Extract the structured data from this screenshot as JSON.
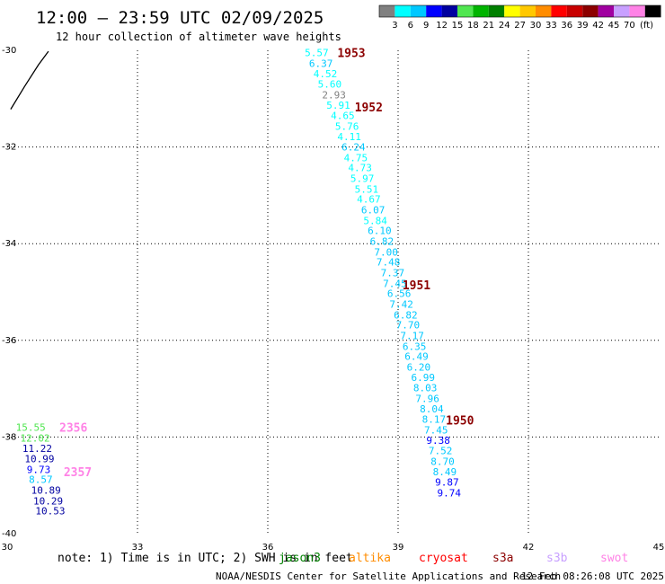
{
  "header": {
    "title": "12:00 – 23:59 UTC 02/09/2025",
    "subtitle": "12 hour collection of altimeter wave heights"
  },
  "colorbar": {
    "unit": "(ft)",
    "colors": [
      "#808080",
      "#00ffff",
      "#00c8ff",
      "#0000ff",
      "#0000a0",
      "#50e650",
      "#00b400",
      "#008000",
      "#ffff00",
      "#ffc800",
      "#ff8c00",
      "#ff0000",
      "#c80000",
      "#8c0000",
      "#a000a0",
      "#c8a0ff",
      "#ff82e6",
      "#000000"
    ],
    "labels": [
      "3",
      "6",
      "9",
      "12",
      "15",
      "18",
      "21",
      "24",
      "27",
      "30",
      "33",
      "36",
      "39",
      "42",
      "45",
      "70"
    ]
  },
  "footer": {
    "note": "note:  1) Time is in UTC; 2) SWH is in feet",
    "satellites": [
      {
        "name": "jason3",
        "color": "#008000"
      },
      {
        "name": "altika",
        "color": "#ff8c00"
      },
      {
        "name": "cryosat",
        "color": "#ff0000"
      },
      {
        "name": "s3a",
        "color": "#8c0000"
      },
      {
        "name": "s3b",
        "color": "#c8a0ff"
      },
      {
        "name": "swot",
        "color": "#ff82e6"
      }
    ],
    "credit": "NOAA/NESDIS Center for Satellite Applications and Research",
    "timestamp": "12 Feb 08:26:08 UTC 2025"
  },
  "chart_data": {
    "type": "map",
    "xlim": [
      30,
      45
    ],
    "ylim": [
      -40,
      -30
    ],
    "x_ticks": [
      30,
      33,
      36,
      39,
      42,
      45
    ],
    "y_ticks": [
      -30,
      -32,
      -34,
      -36,
      -38,
      -40
    ],
    "x_tick_labels": [
      "30",
      "33",
      "36",
      "39",
      "42",
      "45"
    ],
    "y_tick_labels": [
      "-30",
      "-32",
      "-34",
      "-36",
      "-38",
      "-40"
    ],
    "grid": true,
    "coastline": [
      [
        30.08,
        -31.22
      ],
      [
        30.4,
        -30.75
      ],
      [
        30.72,
        -30.3
      ],
      [
        30.95,
        -30.02
      ]
    ],
    "observations": [
      {
        "lon": 36.85,
        "lat": -30.05,
        "swh": "5.57",
        "color": "#00ffff"
      },
      {
        "lon": 36.95,
        "lat": -30.27,
        "swh": "6.37",
        "color": "#00c8ff"
      },
      {
        "lon": 37.05,
        "lat": -30.48,
        "swh": "4.52",
        "color": "#00ffff"
      },
      {
        "lon": 37.15,
        "lat": -30.7,
        "swh": "5.60",
        "color": "#00ffff"
      },
      {
        "lon": 37.25,
        "lat": -30.92,
        "swh": "2.93",
        "color": "#808080"
      },
      {
        "lon": 37.35,
        "lat": -31.13,
        "swh": "5.91",
        "color": "#00ffff"
      },
      {
        "lon": 37.45,
        "lat": -31.35,
        "swh": "4.65",
        "color": "#00ffff"
      },
      {
        "lon": 37.55,
        "lat": -31.57,
        "swh": "5.76",
        "color": "#00ffff"
      },
      {
        "lon": 37.6,
        "lat": -31.78,
        "swh": "4.11",
        "color": "#00ffff"
      },
      {
        "lon": 37.7,
        "lat": -32.0,
        "swh": "6.24",
        "color": "#00c8ff"
      },
      {
        "lon": 37.75,
        "lat": -32.22,
        "swh": "4.75",
        "color": "#00ffff"
      },
      {
        "lon": 37.85,
        "lat": -32.43,
        "swh": "4.73",
        "color": "#00ffff"
      },
      {
        "lon": 37.9,
        "lat": -32.65,
        "swh": "5.97",
        "color": "#00ffff"
      },
      {
        "lon": 38.0,
        "lat": -32.87,
        "swh": "5.51",
        "color": "#00ffff"
      },
      {
        "lon": 38.05,
        "lat": -33.08,
        "swh": "4.67",
        "color": "#00ffff"
      },
      {
        "lon": 38.15,
        "lat": -33.3,
        "swh": "6.07",
        "color": "#00c8ff"
      },
      {
        "lon": 38.2,
        "lat": -33.52,
        "swh": "5.84",
        "color": "#00ffff"
      },
      {
        "lon": 38.3,
        "lat": -33.73,
        "swh": "6.10",
        "color": "#00c8ff"
      },
      {
        "lon": 38.35,
        "lat": -33.95,
        "swh": "6.82",
        "color": "#00c8ff"
      },
      {
        "lon": 38.45,
        "lat": -34.17,
        "swh": "7.00",
        "color": "#00c8ff"
      },
      {
        "lon": 38.5,
        "lat": -34.38,
        "swh": "7.48",
        "color": "#00c8ff"
      },
      {
        "lon": 38.6,
        "lat": -34.6,
        "swh": "7.37",
        "color": "#00c8ff"
      },
      {
        "lon": 38.65,
        "lat": -34.82,
        "swh": "7.45",
        "color": "#00c8ff"
      },
      {
        "lon": 38.75,
        "lat": -35.03,
        "swh": "6.56",
        "color": "#00c8ff"
      },
      {
        "lon": 38.8,
        "lat": -35.25,
        "swh": "7.42",
        "color": "#00c8ff"
      },
      {
        "lon": 38.9,
        "lat": -35.47,
        "swh": "6.82",
        "color": "#00c8ff"
      },
      {
        "lon": 38.95,
        "lat": -35.68,
        "swh": "7.70",
        "color": "#00c8ff"
      },
      {
        "lon": 39.05,
        "lat": -35.9,
        "swh": "7.17",
        "color": "#00c8ff"
      },
      {
        "lon": 39.1,
        "lat": -36.12,
        "swh": "6.35",
        "color": "#00c8ff"
      },
      {
        "lon": 39.15,
        "lat": -36.33,
        "swh": "6.49",
        "color": "#00c8ff"
      },
      {
        "lon": 39.2,
        "lat": -36.55,
        "swh": "6.20",
        "color": "#00c8ff"
      },
      {
        "lon": 39.3,
        "lat": -36.77,
        "swh": "6.99",
        "color": "#00c8ff"
      },
      {
        "lon": 39.35,
        "lat": -36.98,
        "swh": "8.03",
        "color": "#00c8ff"
      },
      {
        "lon": 39.4,
        "lat": -37.2,
        "swh": "7.96",
        "color": "#00c8ff"
      },
      {
        "lon": 39.5,
        "lat": -37.42,
        "swh": "8.04",
        "color": "#00c8ff"
      },
      {
        "lon": 39.55,
        "lat": -37.63,
        "swh": "8.17",
        "color": "#00c8ff"
      },
      {
        "lon": 39.6,
        "lat": -37.85,
        "swh": "7.45",
        "color": "#00c8ff"
      },
      {
        "lon": 39.65,
        "lat": -38.07,
        "swh": "9.38",
        "color": "#0000ff"
      },
      {
        "lon": 39.7,
        "lat": -38.28,
        "swh": "7.52",
        "color": "#00c8ff"
      },
      {
        "lon": 39.75,
        "lat": -38.5,
        "swh": "8.70",
        "color": "#00c8ff"
      },
      {
        "lon": 39.8,
        "lat": -38.72,
        "swh": "8.49",
        "color": "#00c8ff"
      },
      {
        "lon": 39.85,
        "lat": -38.93,
        "swh": "9.87",
        "color": "#0000ff"
      },
      {
        "lon": 39.9,
        "lat": -39.15,
        "swh": "9.74",
        "color": "#0000ff"
      },
      {
        "lon": 30.2,
        "lat": -37.8,
        "swh": "15.55",
        "color": "#50e650"
      },
      {
        "lon": 30.3,
        "lat": -38.02,
        "swh": "12.02",
        "color": "#50e650"
      },
      {
        "lon": 30.35,
        "lat": -38.23,
        "swh": "11.22",
        "color": "#0000a0"
      },
      {
        "lon": 30.4,
        "lat": -38.45,
        "swh": "10.99",
        "color": "#0000a0"
      },
      {
        "lon": 30.45,
        "lat": -38.67,
        "swh": "9.73",
        "color": "#0000ff"
      },
      {
        "lon": 30.5,
        "lat": -38.88,
        "swh": "8.57",
        "color": "#00c8ff"
      },
      {
        "lon": 30.55,
        "lat": -39.1,
        "swh": "10.89",
        "color": "#0000a0"
      },
      {
        "lon": 30.6,
        "lat": -39.32,
        "swh": "10.29",
        "color": "#0000a0"
      },
      {
        "lon": 30.65,
        "lat": -39.53,
        "swh": "10.53",
        "color": "#0000a0"
      }
    ],
    "track_labels": [
      {
        "lon": 37.6,
        "lat": -30.05,
        "text": "1953",
        "color": "#8c0000"
      },
      {
        "lon": 38.0,
        "lat": -31.17,
        "text": "1952",
        "color": "#8c0000"
      },
      {
        "lon": 39.1,
        "lat": -34.85,
        "text": "1951",
        "color": "#8c0000"
      },
      {
        "lon": 40.1,
        "lat": -37.65,
        "text": "1950",
        "color": "#8c0000"
      },
      {
        "lon": 31.2,
        "lat": -37.8,
        "text": "2356",
        "color": "#ff82e6"
      },
      {
        "lon": 31.3,
        "lat": -38.72,
        "text": "2357",
        "color": "#ff82e6"
      }
    ]
  }
}
